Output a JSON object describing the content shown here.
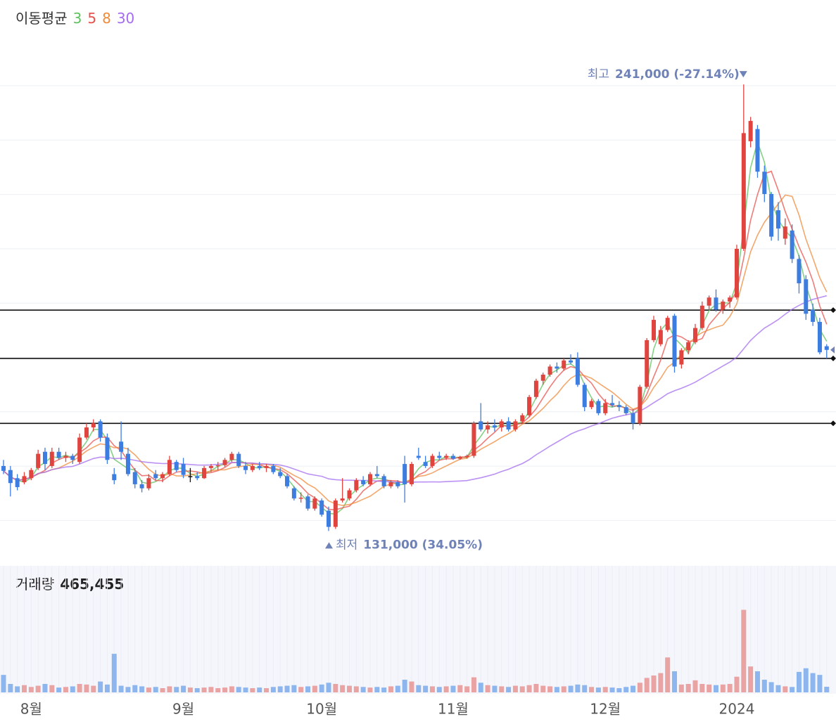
{
  "chart_data": {
    "type": "candlestick",
    "ma_title": "이동평균",
    "ma_periods": [
      3,
      5,
      8,
      30
    ],
    "ma_colors": [
      "#5cc15c",
      "#e8524c",
      "#ef8a3a",
      "#a46cf0"
    ],
    "up_color": "#e0443f",
    "down_color": "#3d7de0",
    "ylim": [
      125000,
      254000
    ],
    "categories": [
      null,
      null,
      null,
      null,
      "8월",
      null,
      null,
      null,
      null,
      null,
      null,
      null,
      null,
      null,
      null,
      null,
      null,
      null,
      null,
      null,
      null,
      null,
      null,
      null,
      null,
      null,
      "9월",
      null,
      null,
      null,
      null,
      null,
      null,
      null,
      null,
      null,
      null,
      null,
      null,
      null,
      null,
      null,
      null,
      null,
      null,
      null,
      "10월",
      null,
      null,
      null,
      null,
      null,
      null,
      null,
      null,
      null,
      null,
      null,
      null,
      null,
      null,
      null,
      null,
      null,
      null,
      "11월",
      null,
      null,
      null,
      null,
      null,
      null,
      null,
      null,
      null,
      null,
      null,
      null,
      null,
      null,
      null,
      null,
      null,
      null,
      null,
      null,
      null,
      "12월",
      null,
      null,
      null,
      null,
      null,
      null,
      null,
      null,
      null,
      null,
      null,
      null,
      null,
      null,
      null,
      null,
      null,
      null,
      "2024",
      null,
      null,
      null,
      null,
      null,
      null,
      null,
      null,
      null,
      null,
      null,
      null,
      null
    ],
    "ohlc": [
      [
        147000,
        148500,
        145000,
        145800
      ],
      [
        146000,
        147000,
        139500,
        142800
      ],
      [
        144000,
        145000,
        141000,
        141800
      ],
      [
        143000,
        145500,
        142500,
        144500
      ],
      [
        144000,
        146500,
        143500,
        146000
      ],
      [
        146500,
        151000,
        146000,
        150000
      ],
      [
        150500,
        151500,
        146000,
        147500
      ],
      [
        147000,
        151500,
        146500,
        150500
      ],
      [
        150500,
        151500,
        148500,
        149000
      ],
      [
        149000,
        150500,
        148000,
        149500
      ],
      [
        149500,
        150000,
        147500,
        148500
      ],
      [
        148000,
        155000,
        147500,
        154000
      ],
      [
        154000,
        157500,
        153500,
        156500
      ],
      [
        156500,
        158500,
        155500,
        157500
      ],
      [
        158000,
        158500,
        153000,
        154000
      ],
      [
        154000,
        155000,
        147500,
        148500
      ],
      [
        145000,
        146500,
        142500,
        143500
      ],
      [
        153000,
        158000,
        148500,
        150500
      ],
      [
        150000,
        151500,
        144500,
        145000
      ],
      [
        145500,
        146500,
        141500,
        142500
      ],
      [
        142500,
        143500,
        140500,
        141500
      ],
      [
        141500,
        145000,
        141000,
        144000
      ],
      [
        145000,
        146000,
        143500,
        144000
      ],
      [
        144000,
        145500,
        143000,
        145000
      ],
      [
        145000,
        149500,
        144500,
        148500
      ],
      [
        148000,
        148500,
        145500,
        146000
      ],
      [
        147500,
        149000,
        144000,
        144800
      ],
      [
        144500,
        146500,
        143000,
        144500
      ],
      [
        144500,
        145500,
        143500,
        144000
      ],
      [
        144000,
        147000,
        143800,
        146500
      ],
      [
        146500,
        147500,
        145500,
        147000
      ],
      [
        147000,
        148000,
        146000,
        147200
      ],
      [
        147200,
        149000,
        146800,
        148500
      ],
      [
        148500,
        150500,
        148000,
        150000
      ],
      [
        150000,
        150500,
        146500,
        147000
      ],
      [
        147000,
        148000,
        145000,
        146000
      ],
      [
        146000,
        147500,
        145500,
        147000
      ],
      [
        147000,
        148000,
        146000,
        146500
      ],
      [
        146500,
        147500,
        145500,
        147000
      ],
      [
        147000,
        147500,
        145000,
        145500
      ],
      [
        145500,
        146500,
        144000,
        144500
      ],
      [
        144500,
        145000,
        141500,
        142000
      ],
      [
        141500,
        142000,
        138500,
        139000
      ],
      [
        139000,
        140500,
        138000,
        139200
      ],
      [
        139500,
        140000,
        136000,
        136500
      ],
      [
        136500,
        139500,
        136000,
        139000
      ],
      [
        138500,
        139000,
        134500,
        135000
      ],
      [
        136000,
        137000,
        131000,
        132000
      ],
      [
        132000,
        139000,
        131500,
        138500
      ],
      [
        138500,
        144000,
        138000,
        139000
      ],
      [
        139000,
        141500,
        138500,
        141000
      ],
      [
        141000,
        144000,
        140500,
        143500
      ],
      [
        143500,
        144500,
        142000,
        142500
      ],
      [
        142500,
        145500,
        142000,
        145000
      ],
      [
        145000,
        147000,
        144000,
        144500
      ],
      [
        144500,
        145000,
        141500,
        142000
      ],
      [
        142000,
        143500,
        141500,
        143000
      ],
      [
        143000,
        143500,
        141500,
        142000
      ],
      [
        147500,
        149500,
        138000,
        142500
      ],
      [
        142500,
        148000,
        142000,
        147500
      ],
      [
        149500,
        151500,
        148500,
        149000
      ],
      [
        148000,
        149500,
        146500,
        147000
      ],
      [
        147000,
        150000,
        146500,
        149500
      ],
      [
        149500,
        150500,
        148500,
        149000
      ],
      [
        149000,
        150000,
        148500,
        149500
      ],
      [
        149500,
        150000,
        148500,
        148800
      ],
      [
        148800,
        149500,
        148500,
        149200
      ],
      [
        149200,
        149800,
        148800,
        149500
      ],
      [
        149500,
        158000,
        149000,
        157500
      ],
      [
        158000,
        162500,
        155500,
        156000
      ],
      [
        156000,
        158000,
        155000,
        157000
      ],
      [
        157000,
        158500,
        155500,
        156500
      ],
      [
        156500,
        158500,
        155500,
        158000
      ],
      [
        158000,
        159000,
        155500,
        156000
      ],
      [
        156000,
        158500,
        155500,
        158000
      ],
      [
        158000,
        160000,
        157500,
        159500
      ],
      [
        159500,
        164500,
        159000,
        164000
      ],
      [
        164000,
        168500,
        163500,
        168000
      ],
      [
        168000,
        170000,
        167000,
        169500
      ],
      [
        169500,
        172000,
        169000,
        171500
      ],
      [
        171500,
        172500,
        170000,
        171000
      ],
      [
        171000,
        173500,
        170500,
        173000
      ],
      [
        173000,
        174500,
        172000,
        172500
      ],
      [
        173500,
        175000,
        166500,
        167000
      ],
      [
        167000,
        167500,
        160500,
        161500
      ],
      [
        161500,
        163500,
        161000,
        163000
      ],
      [
        163000,
        163500,
        159500,
        160000
      ],
      [
        160000,
        163500,
        159500,
        162500
      ],
      [
        162500,
        164500,
        161500,
        162000
      ],
      [
        162000,
        163000,
        160500,
        161500
      ],
      [
        161500,
        162000,
        159500,
        160000
      ],
      [
        160000,
        161000,
        156000,
        157500
      ],
      [
        157500,
        167000,
        157000,
        166500
      ],
      [
        166500,
        178500,
        166000,
        178000
      ],
      [
        178000,
        184000,
        177500,
        183000
      ],
      [
        177000,
        181500,
        176500,
        180500
      ],
      [
        180500,
        184000,
        180000,
        183500
      ],
      [
        184000,
        184500,
        170000,
        171500
      ],
      [
        172000,
        176000,
        171000,
        175500
      ],
      [
        175500,
        178000,
        174500,
        177500
      ],
      [
        177500,
        182000,
        177000,
        181000
      ],
      [
        181000,
        187500,
        180500,
        186500
      ],
      [
        186500,
        189000,
        185500,
        188500
      ],
      [
        188500,
        190500,
        185000,
        185500
      ],
      [
        185500,
        188000,
        184500,
        187500
      ],
      [
        187500,
        189000,
        186000,
        188500
      ],
      [
        188500,
        201500,
        188000,
        200500
      ],
      [
        200500,
        241000,
        200000,
        229000
      ],
      [
        227000,
        233000,
        225500,
        232000
      ],
      [
        230000,
        231000,
        218000,
        219500
      ],
      [
        219500,
        221000,
        212000,
        214000
      ],
      [
        214000,
        214500,
        202500,
        203500
      ],
      [
        210000,
        212000,
        202500,
        205500
      ],
      [
        203000,
        208000,
        201500,
        206000
      ],
      [
        205000,
        206500,
        197000,
        198000
      ],
      [
        198000,
        199000,
        189500,
        192000
      ],
      [
        193000,
        194000,
        183000,
        184500
      ],
      [
        185500,
        187000,
        181500,
        182500
      ],
      [
        182500,
        183500,
        174500,
        175000
      ],
      [
        176500,
        177000,
        173500,
        175600
      ]
    ],
    "price_lines": [
      185400,
      173500,
      157500
    ],
    "high_label": "최고",
    "high_value_label": "241,000 (-27.14%)",
    "low_label": "최저",
    "low_value_label": "131,000 (34.05%)",
    "volume_title": "거래량",
    "volume_current_label": "465,455",
    "volume_ylim": [
      0,
      7000000
    ],
    "volume": [
      1450000,
      700000,
      500000,
      600000,
      450000,
      550000,
      700000,
      600000,
      400000,
      450000,
      500000,
      700000,
      650000,
      550000,
      900000,
      650000,
      3200000,
      550000,
      450000,
      600000,
      500000,
      400000,
      450000,
      350000,
      500000,
      450000,
      550000,
      400000,
      350000,
      400000,
      450000,
      350000,
      400000,
      500000,
      450000,
      400000,
      350000,
      400000,
      350000,
      450000,
      500000,
      550000,
      600000,
      450000,
      500000,
      550000,
      650000,
      800000,
      700000,
      600000,
      550000,
      500000,
      450000,
      400000,
      450000,
      400000,
      500000,
      550000,
      1050000,
      900000,
      600000,
      550000,
      500000,
      450000,
      500000,
      550000,
      600000,
      500000,
      1250000,
      800000,
      600000,
      550000,
      500000,
      450000,
      550000,
      500000,
      600000,
      700000,
      550000,
      500000,
      450000,
      500000,
      550000,
      650000,
      600000,
      450000,
      400000,
      450000,
      400000,
      350000,
      450000,
      550000,
      800000,
      1200000,
      1400000,
      1600000,
      2900000,
      1750000,
      650000,
      700000,
      1000000,
      700000,
      650000,
      600000,
      650000,
      700000,
      1300000,
      6850000,
      2150000,
      1750000,
      1050000,
      850000,
      600000,
      500000,
      450000,
      1700000,
      2000000,
      1600000,
      1450000,
      465455
    ]
  }
}
